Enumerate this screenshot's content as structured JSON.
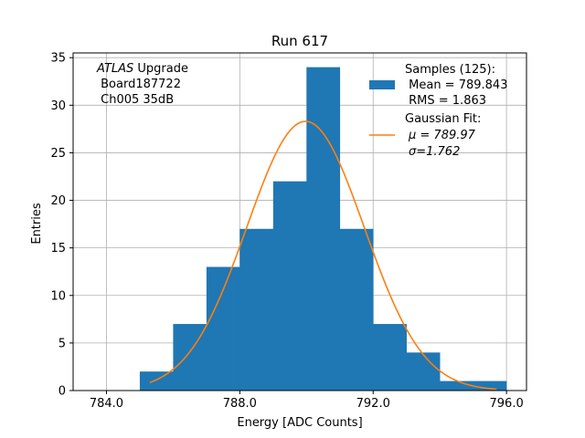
{
  "chart_data": {
    "type": "bar",
    "title": "Run 617",
    "xlabel": "Energy [ADC Counts]",
    "ylabel": "Entries",
    "xlim": [
      83.0,
      796.6
    ],
    "ylim": [
      0,
      35.5
    ],
    "xticks": [
      784.0,
      788.0,
      792.0,
      796.0
    ],
    "xtick_labels": [
      "784.0",
      "788.0",
      "792.0",
      "796.0"
    ],
    "yticks": [
      0,
      5,
      10,
      15,
      20,
      25,
      30,
      35
    ],
    "ytick_labels": [
      "0",
      "5",
      "10",
      "15",
      "20",
      "25",
      "30",
      "35"
    ],
    "grid": true,
    "bin_edges": [
      785,
      786,
      787,
      788,
      789,
      790,
      791,
      792,
      793,
      794,
      795,
      796
    ],
    "values": [
      2,
      7,
      13,
      17,
      22,
      34,
      17,
      7,
      4,
      1,
      1
    ],
    "bar_color": "#1f77b4",
    "fit": {
      "mu": 789.97,
      "sigma": 1.762,
      "x_range": [
        785.3,
        795.7
      ],
      "color": "#ff7f0e"
    },
    "annotation": {
      "line1_italic": "ATLAS",
      "line1_rest": " Upgrade",
      "line2": " Board187722",
      "line3": " Ch005 35dB"
    },
    "legend": {
      "placement": "top-right",
      "samples_lines": [
        "Samples (125):",
        " Mean = 789.843",
        " RMS = 1.863"
      ],
      "fit_title": "Gaussian Fit:",
      "fit_mu_label": "μ = 789.97",
      "fit_sigma_label": "σ=1.762"
    }
  }
}
